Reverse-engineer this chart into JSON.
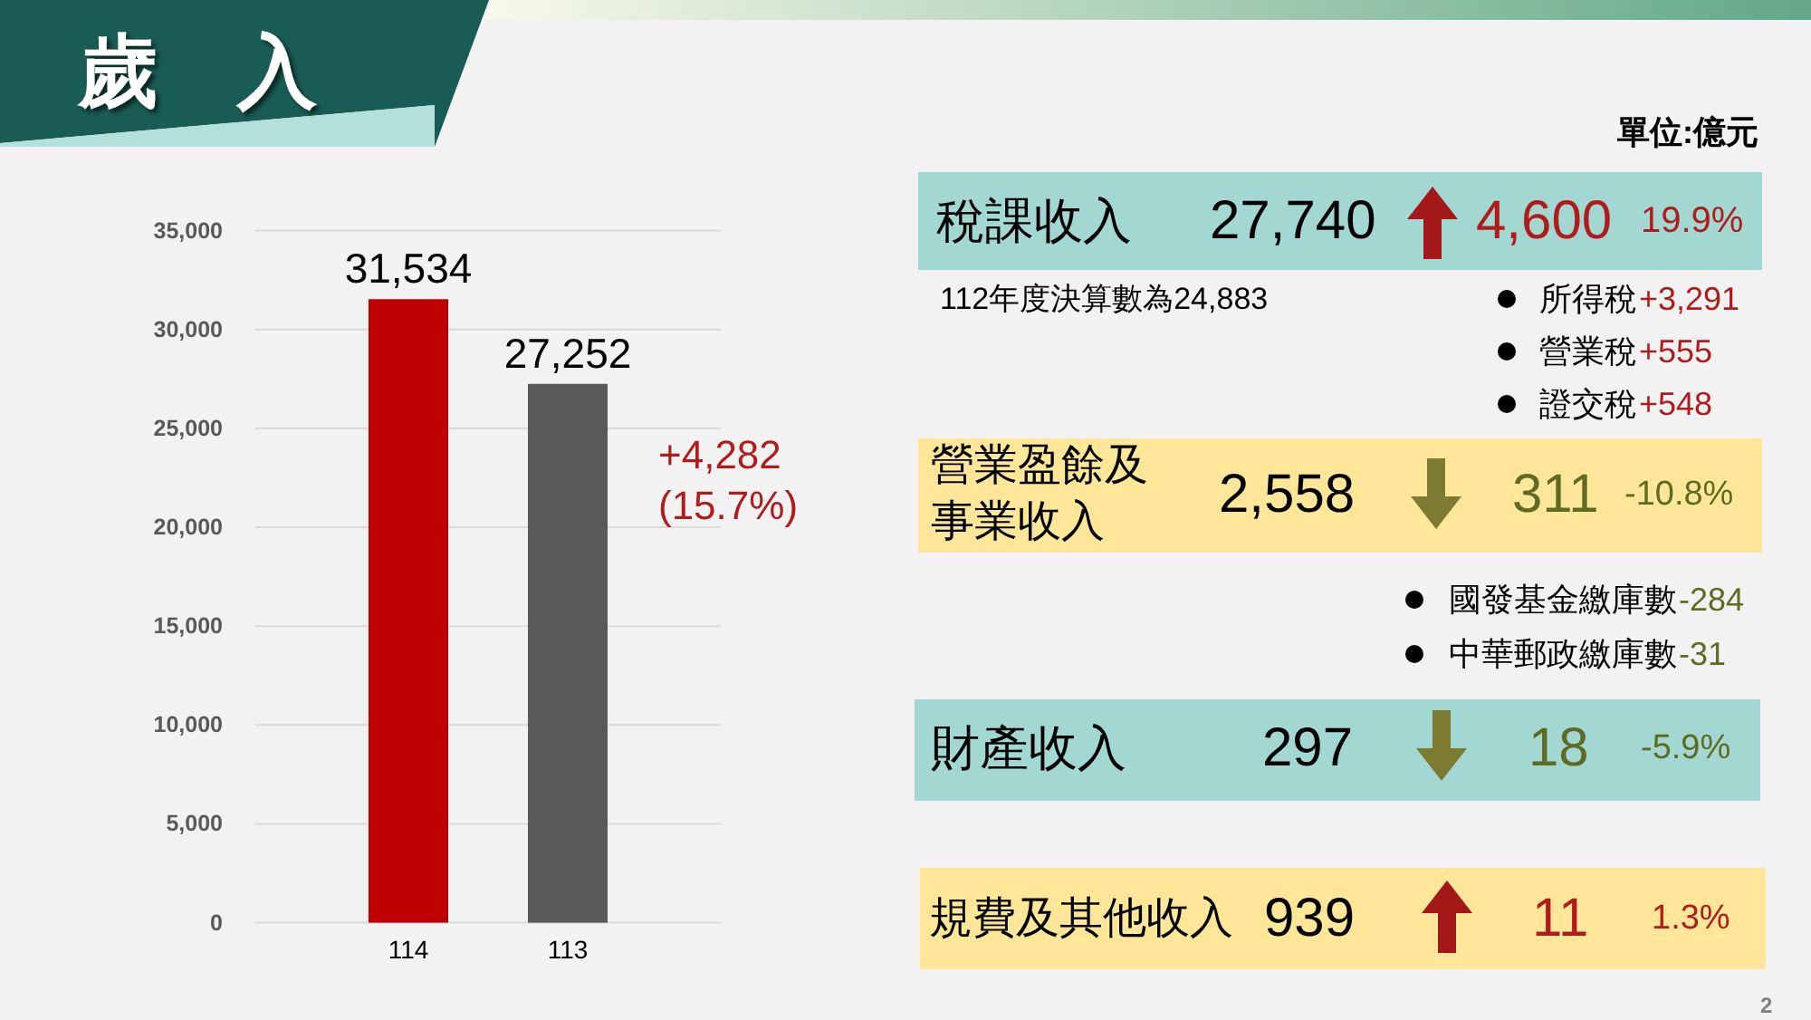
{
  "chart_data": [
    {
      "type": "bar",
      "title": "歲　入",
      "categories": [
        "114",
        "113"
      ],
      "values": [
        31534,
        27252
      ],
      "colors": [
        "#c00000",
        "#595959"
      ],
      "value_labels": [
        "31,534",
        "27,252"
      ],
      "ylim": [
        0,
        35000
      ],
      "yticks": [
        0,
        {
          "value": 5000,
          "label": "5,000"
        },
        {
          "value": 10000,
          "label": "10,000"
        },
        {
          "value": 15000,
          "label": "15,000"
        },
        {
          "value": 20000,
          "label": "20,000"
        },
        {
          "value": 25000,
          "label": "25,000"
        },
        {
          "value": 30000,
          "label": "30,000"
        },
        {
          "value": 35000,
          "label": "35,000"
        }
      ],
      "grid": "y",
      "annotations": [
        "+4,282",
        "(15.7%)"
      ]
    },
    {
      "type": "other",
      "annotations": [
        "單位:億元",
        "稅課收入",
        "27,740",
        "4,600",
        "19.9%",
        "112年度決算數為24,883",
        "所得稅",
        "+3,291",
        "營業稅",
        "+555",
        "證交稅",
        "+548",
        "營業盈餘及",
        "事業收入",
        "2,558",
        "311",
        "-10.8%",
        "國發基金繳庫數",
        "-284",
        "中華郵政繳庫數",
        "-31",
        "財產收入",
        "297",
        "18",
        "-5.9%",
        "規費及其他收入",
        "939",
        "11",
        "1.3%",
        "2"
      ]
    }
  ]
}
